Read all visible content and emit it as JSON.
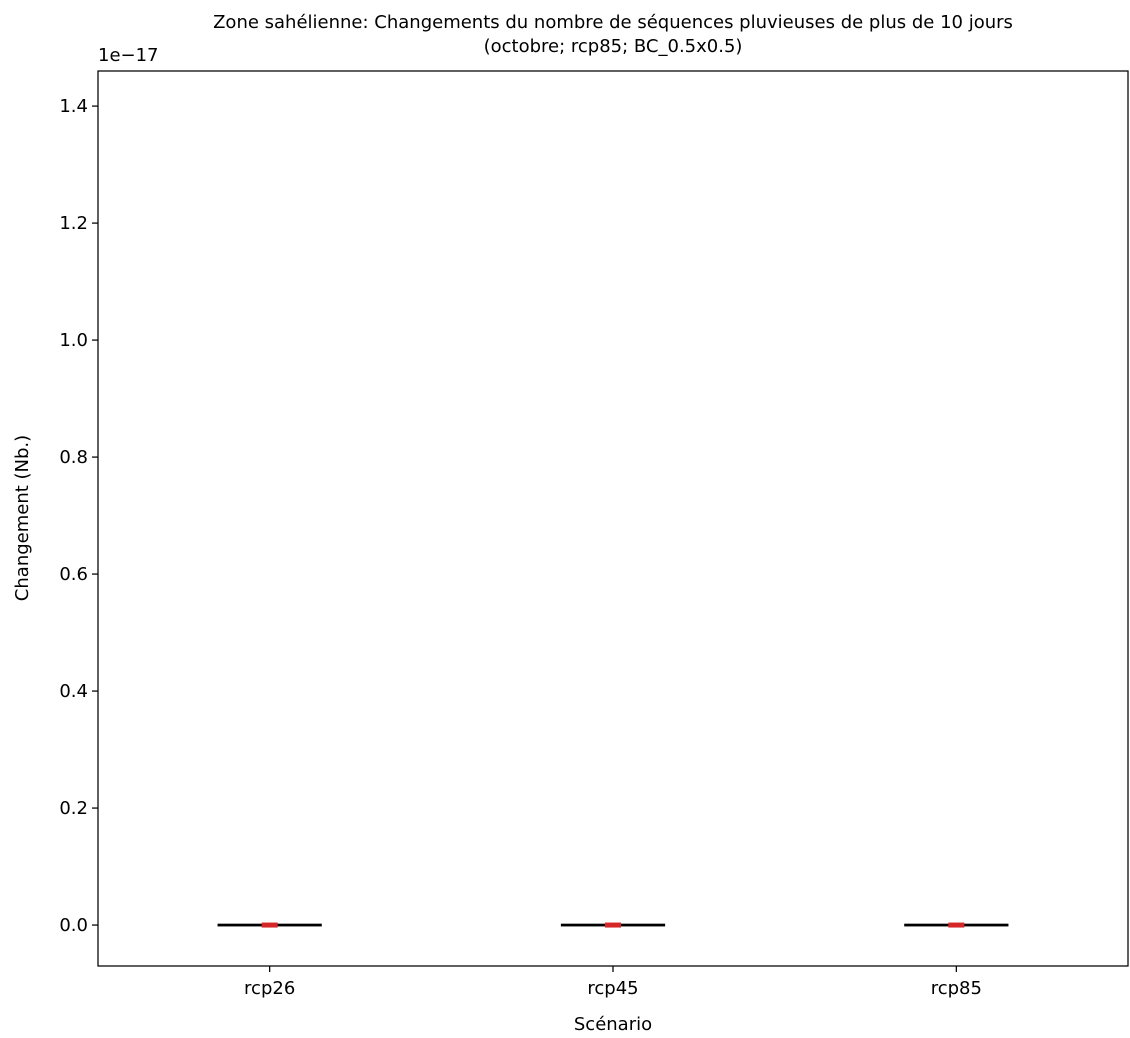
{
  "chart_data": {
    "type": "box",
    "title_line1": "Zone sahélienne: Changements du nombre de séquences pluvieuses de plus de 10 jours",
    "title_line2": "(octobre; rcp85; BC_0.5x0.5)",
    "xlabel": "Scénario",
    "ylabel": "Changement (Nb.)",
    "y_offset_label": "1e−17",
    "y_scale": 1e-17,
    "ylim": [
      -0.07,
      1.46
    ],
    "yticks": [
      0.0,
      0.2,
      0.4,
      0.6,
      0.8,
      1.0,
      1.2,
      1.4
    ],
    "ytick_labels": [
      "0.0",
      "0.2",
      "0.4",
      "0.6",
      "0.8",
      "1.0",
      "1.2",
      "1.4"
    ],
    "categories": [
      "rcp26",
      "rcp45",
      "rcp85"
    ],
    "boxes": [
      {
        "category": "rcp26",
        "min": 0.0,
        "q1": 0.0,
        "median": 0.0,
        "q3": 0.0,
        "max": 0.0
      },
      {
        "category": "rcp45",
        "min": 0.0,
        "q1": 0.0,
        "median": 0.0,
        "q3": 0.0,
        "max": 0.0
      },
      {
        "category": "rcp85",
        "min": 0.0,
        "q1": 0.0,
        "median": 0.0,
        "q3": 0.0,
        "max": 0.0
      }
    ],
    "median_color": "#d62728",
    "box_color": "#000000",
    "grid": false,
    "legend": "none"
  }
}
